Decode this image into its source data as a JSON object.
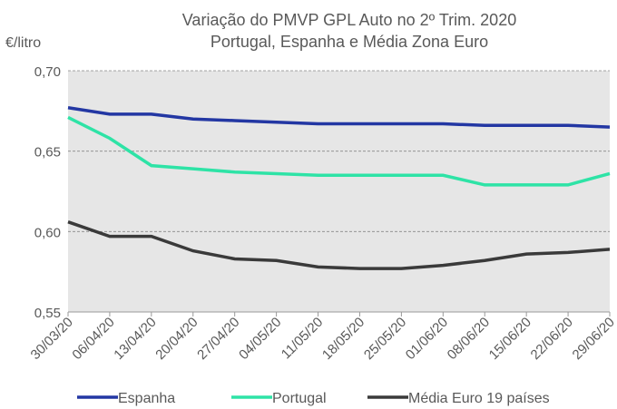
{
  "chart_data": {
    "type": "line",
    "title": "Variação do PMVP GPL Auto no 2º Trim. 2020",
    "subtitle": "Portugal, Espanha e Média Zona Euro",
    "y_label": "€/litro",
    "categories": [
      "30/03/20",
      "06/04/20",
      "13/04/20",
      "20/04/20",
      "27/04/20",
      "04/05/20",
      "11/05/20",
      "18/05/20",
      "25/05/20",
      "01/06/20",
      "08/06/20",
      "15/06/20",
      "22/06/20",
      "29/06/20"
    ],
    "series": [
      {
        "name": "Espanha",
        "color": "#2337a3",
        "values": [
          0.677,
          0.673,
          0.673,
          0.67,
          0.669,
          0.668,
          0.667,
          0.667,
          0.667,
          0.667,
          0.666,
          0.666,
          0.666,
          0.665
        ]
      },
      {
        "name": "Portugal",
        "color": "#2ee3a6",
        "values": [
          0.671,
          0.658,
          0.641,
          0.639,
          0.637,
          0.636,
          0.635,
          0.635,
          0.635,
          0.635,
          0.629,
          0.629,
          0.629,
          0.636
        ]
      },
      {
        "name": "Média Euro 19 países",
        "color": "#3a3a3a",
        "values": [
          0.606,
          0.597,
          0.597,
          0.588,
          0.583,
          0.582,
          0.578,
          0.577,
          0.577,
          0.579,
          0.582,
          0.586,
          0.587,
          0.589
        ]
      }
    ],
    "ylim": [
      0.55,
      0.7
    ],
    "yticks": [
      {
        "value": 0.55,
        "label": "0,55"
      },
      {
        "value": 0.6,
        "label": "0,60"
      },
      {
        "value": 0.65,
        "label": "0,65"
      },
      {
        "value": 0.7,
        "label": "0,70"
      }
    ],
    "grid": true,
    "legend": "bottom"
  }
}
